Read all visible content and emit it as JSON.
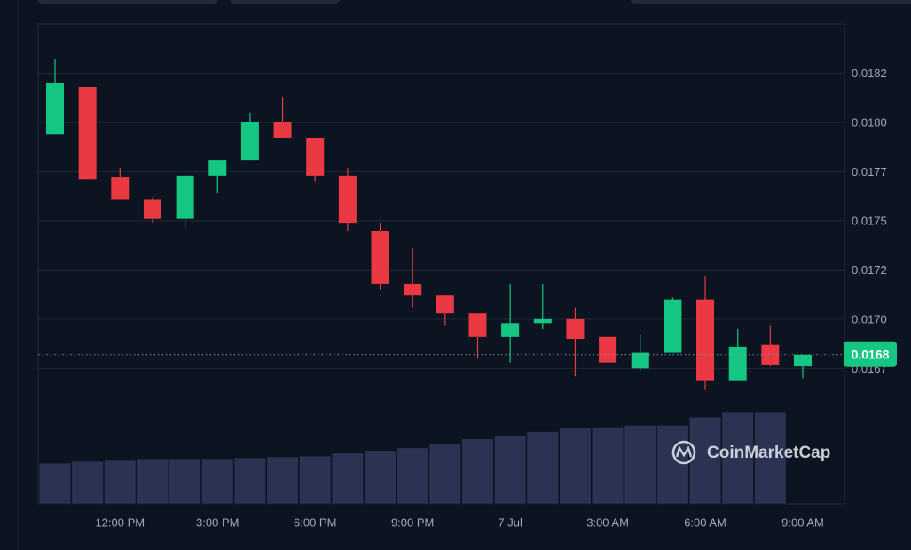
{
  "chart_data": {
    "type": "candlestick",
    "categories": [
      null,
      null,
      "12:00 PM",
      null,
      null,
      "3:00 PM",
      null,
      null,
      "6:00 PM",
      null,
      null,
      "9:00 PM",
      null,
      null,
      "7 Jul",
      null,
      null,
      "3:00 AM",
      null,
      null,
      "6:00 AM",
      null,
      null,
      "9:00 AM"
    ],
    "open": [
      0.01794,
      0.01818,
      0.01772,
      0.01761,
      0.01751,
      0.01773,
      0.01781,
      0.018,
      0.01792,
      0.01773,
      0.01745,
      0.01718,
      0.01712,
      0.01703,
      0.01691,
      0.01698,
      0.017,
      0.01691,
      0.01675,
      0.01683,
      0.0171,
      0.01669,
      0.01687,
      0.01676
    ],
    "high": [
      0.01832,
      0.01818,
      0.01777,
      0.01762,
      0.01773,
      0.01781,
      0.01805,
      0.01813,
      0.01792,
      0.01777,
      0.01749,
      0.01736,
      0.01712,
      0.01703,
      0.01718,
      0.01718,
      0.01706,
      0.01691,
      0.01692,
      0.01711,
      0.01722,
      0.01695,
      0.01697,
      0.01682
    ],
    "low": [
      0.01794,
      0.01771,
      0.01761,
      0.01749,
      0.01746,
      0.01764,
      0.01781,
      0.01792,
      0.0177,
      0.01745,
      0.01715,
      0.01706,
      0.01697,
      0.0168,
      0.01678,
      0.01695,
      0.01671,
      0.01678,
      0.01674,
      0.01683,
      0.01664,
      0.01669,
      0.01676,
      0.0167
    ],
    "close": [
      0.0182,
      0.01771,
      0.01761,
      0.01751,
      0.01773,
      0.01781,
      0.018,
      0.01792,
      0.01773,
      0.01749,
      0.01718,
      0.01712,
      0.01703,
      0.01691,
      0.01698,
      0.017,
      0.0169,
      0.01678,
      0.01683,
      0.0171,
      0.01669,
      0.01686,
      0.01677,
      0.01682
    ],
    "volume": [
      45,
      47,
      48,
      50,
      50,
      50,
      51,
      52,
      53,
      56,
      59,
      62,
      66,
      72,
      76,
      80,
      84,
      85,
      87,
      87,
      96,
      102,
      102,
      null
    ],
    "volume_lim": [
      0,
      110
    ],
    "up_color": "#16c784",
    "down_color": "#ea3943",
    "volume_color": "#2a3452",
    "ylim": [
      0.0164,
      0.0185
    ],
    "yticks": [
      {
        "value": 0.01675,
        "label": "0.0167"
      },
      {
        "value": 0.017,
        "label": "0.0170"
      },
      {
        "value": 0.01725,
        "label": "0.0172"
      },
      {
        "value": 0.0175,
        "label": "0.0175"
      },
      {
        "value": 0.01775,
        "label": "0.0177"
      },
      {
        "value": 0.018,
        "label": "0.0180"
      },
      {
        "value": 0.01825,
        "label": "0.0182"
      }
    ],
    "last_price": {
      "value": 0.01682,
      "label": "0.0168"
    },
    "grid": true,
    "watermark": "CoinMarketCap"
  }
}
